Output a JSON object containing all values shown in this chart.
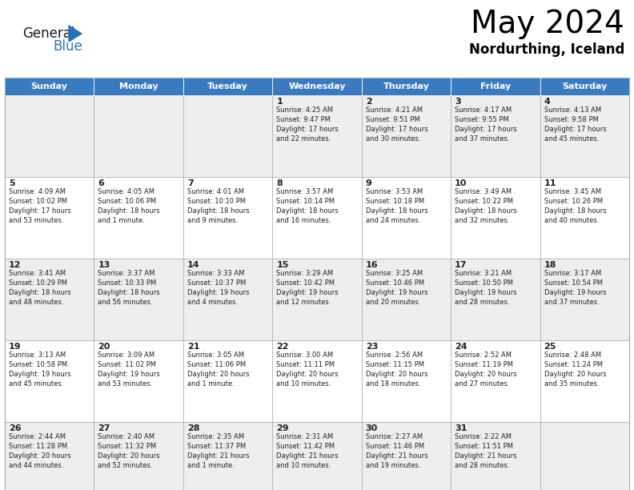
{
  "title": "May 2024",
  "subtitle": "Nordurthing, Iceland",
  "header_color": "#3a7abf",
  "header_text_color": "#ffffff",
  "row_colors": [
    "#eeeeee",
    "#ffffff"
  ],
  "border_color": "#aaaaaa",
  "text_color": "#222222",
  "days_of_week": [
    "Sunday",
    "Monday",
    "Tuesday",
    "Wednesday",
    "Thursday",
    "Friday",
    "Saturday"
  ],
  "weeks": [
    [
      {
        "day": "",
        "info": ""
      },
      {
        "day": "",
        "info": ""
      },
      {
        "day": "",
        "info": ""
      },
      {
        "day": "1",
        "info": "Sunrise: 4:25 AM\nSunset: 9:47 PM\nDaylight: 17 hours\nand 22 minutes."
      },
      {
        "day": "2",
        "info": "Sunrise: 4:21 AM\nSunset: 9:51 PM\nDaylight: 17 hours\nand 30 minutes."
      },
      {
        "day": "3",
        "info": "Sunrise: 4:17 AM\nSunset: 9:55 PM\nDaylight: 17 hours\nand 37 minutes."
      },
      {
        "day": "4",
        "info": "Sunrise: 4:13 AM\nSunset: 9:58 PM\nDaylight: 17 hours\nand 45 minutes."
      }
    ],
    [
      {
        "day": "5",
        "info": "Sunrise: 4:09 AM\nSunset: 10:02 PM\nDaylight: 17 hours\nand 53 minutes."
      },
      {
        "day": "6",
        "info": "Sunrise: 4:05 AM\nSunset: 10:06 PM\nDaylight: 18 hours\nand 1 minute."
      },
      {
        "day": "7",
        "info": "Sunrise: 4:01 AM\nSunset: 10:10 PM\nDaylight: 18 hours\nand 9 minutes."
      },
      {
        "day": "8",
        "info": "Sunrise: 3:57 AM\nSunset: 10:14 PM\nDaylight: 18 hours\nand 16 minutes."
      },
      {
        "day": "9",
        "info": "Sunrise: 3:53 AM\nSunset: 10:18 PM\nDaylight: 18 hours\nand 24 minutes."
      },
      {
        "day": "10",
        "info": "Sunrise: 3:49 AM\nSunset: 10:22 PM\nDaylight: 18 hours\nand 32 minutes."
      },
      {
        "day": "11",
        "info": "Sunrise: 3:45 AM\nSunset: 10:26 PM\nDaylight: 18 hours\nand 40 minutes."
      }
    ],
    [
      {
        "day": "12",
        "info": "Sunrise: 3:41 AM\nSunset: 10:29 PM\nDaylight: 18 hours\nand 48 minutes."
      },
      {
        "day": "13",
        "info": "Sunrise: 3:37 AM\nSunset: 10:33 PM\nDaylight: 18 hours\nand 56 minutes."
      },
      {
        "day": "14",
        "info": "Sunrise: 3:33 AM\nSunset: 10:37 PM\nDaylight: 19 hours\nand 4 minutes."
      },
      {
        "day": "15",
        "info": "Sunrise: 3:29 AM\nSunset: 10:42 PM\nDaylight: 19 hours\nand 12 minutes."
      },
      {
        "day": "16",
        "info": "Sunrise: 3:25 AM\nSunset: 10:46 PM\nDaylight: 19 hours\nand 20 minutes."
      },
      {
        "day": "17",
        "info": "Sunrise: 3:21 AM\nSunset: 10:50 PM\nDaylight: 19 hours\nand 28 minutes."
      },
      {
        "day": "18",
        "info": "Sunrise: 3:17 AM\nSunset: 10:54 PM\nDaylight: 19 hours\nand 37 minutes."
      }
    ],
    [
      {
        "day": "19",
        "info": "Sunrise: 3:13 AM\nSunset: 10:58 PM\nDaylight: 19 hours\nand 45 minutes."
      },
      {
        "day": "20",
        "info": "Sunrise: 3:09 AM\nSunset: 11:02 PM\nDaylight: 19 hours\nand 53 minutes."
      },
      {
        "day": "21",
        "info": "Sunrise: 3:05 AM\nSunset: 11:06 PM\nDaylight: 20 hours\nand 1 minute."
      },
      {
        "day": "22",
        "info": "Sunrise: 3:00 AM\nSunset: 11:11 PM\nDaylight: 20 hours\nand 10 minutes."
      },
      {
        "day": "23",
        "info": "Sunrise: 2:56 AM\nSunset: 11:15 PM\nDaylight: 20 hours\nand 18 minutes."
      },
      {
        "day": "24",
        "info": "Sunrise: 2:52 AM\nSunset: 11:19 PM\nDaylight: 20 hours\nand 27 minutes."
      },
      {
        "day": "25",
        "info": "Sunrise: 2:48 AM\nSunset: 11:24 PM\nDaylight: 20 hours\nand 35 minutes."
      }
    ],
    [
      {
        "day": "26",
        "info": "Sunrise: 2:44 AM\nSunset: 11:28 PM\nDaylight: 20 hours\nand 44 minutes."
      },
      {
        "day": "27",
        "info": "Sunrise: 2:40 AM\nSunset: 11:32 PM\nDaylight: 20 hours\nand 52 minutes."
      },
      {
        "day": "28",
        "info": "Sunrise: 2:35 AM\nSunset: 11:37 PM\nDaylight: 21 hours\nand 1 minute."
      },
      {
        "day": "29",
        "info": "Sunrise: 2:31 AM\nSunset: 11:42 PM\nDaylight: 21 hours\nand 10 minutes."
      },
      {
        "day": "30",
        "info": "Sunrise: 2:27 AM\nSunset: 11:46 PM\nDaylight: 21 hours\nand 19 minutes."
      },
      {
        "day": "31",
        "info": "Sunrise: 2:22 AM\nSunset: 11:51 PM\nDaylight: 21 hours\nand 28 minutes."
      },
      {
        "day": "",
        "info": ""
      }
    ]
  ],
  "logo_general_color": "#1a1a1a",
  "logo_blue_color": "#2a72b8",
  "logo_triangle_color": "#2a72b8"
}
